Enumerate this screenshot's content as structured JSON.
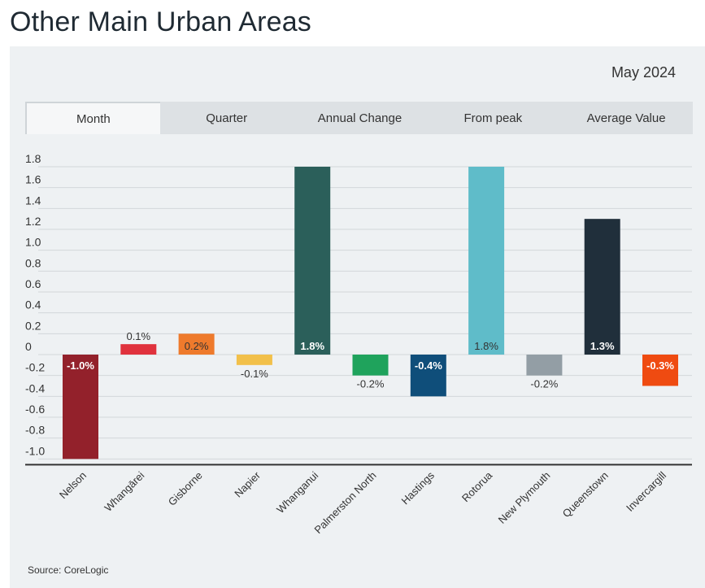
{
  "header": {
    "title": "Other Main Urban Areas"
  },
  "panel": {
    "date": "May 2024",
    "source": "Source: CoreLogic"
  },
  "tabs": [
    {
      "label": "Month",
      "active": true
    },
    {
      "label": "Quarter",
      "active": false
    },
    {
      "label": "Annual Change",
      "active": false
    },
    {
      "label": "From peak",
      "active": false
    },
    {
      "label": "Average Value",
      "active": false
    }
  ],
  "chart_data": {
    "type": "bar",
    "title": "",
    "xlabel": "",
    "ylabel": "",
    "ylim": [
      -1.0,
      1.8
    ],
    "yticks": [
      1.8,
      1.6,
      1.4,
      1.2,
      1.0,
      0.8,
      0.6,
      0.4,
      0.2,
      0,
      -0.2,
      -0.4,
      -0.6,
      -0.8,
      -1.0
    ],
    "ytick_labels": [
      "1.8",
      "1.6",
      "1.4",
      "1.2",
      "1.0",
      "0.8",
      "0.6",
      "0.4",
      "0.2",
      "0",
      "-0.2",
      "-0.4",
      "-0.6",
      "-0.8",
      "-1.0"
    ],
    "grid": true,
    "categories": [
      "Nelson",
      "Whangārei",
      "Gisborne",
      "Napier",
      "Whanganui",
      "Palmerston North",
      "Hastings",
      "Rotorua",
      "New Plymouth",
      "Queenstown",
      "Invercargill"
    ],
    "values": [
      -1.0,
      0.1,
      0.2,
      -0.1,
      1.8,
      -0.2,
      -0.4,
      1.8,
      -0.2,
      1.3,
      -0.3
    ],
    "data_labels": [
      "-1.0%",
      "0.1%",
      "0.2%",
      "-0.1%",
      "1.8%",
      "-0.2%",
      "-0.4%",
      "1.8%",
      "-0.2%",
      "1.3%",
      "-0.3%"
    ],
    "colors": [
      "#93212b",
      "#e0323d",
      "#ee7a2c",
      "#f2c04a",
      "#2b5f5a",
      "#1fa35c",
      "#0f4e7a",
      "#5fbcc9",
      "#939ea5",
      "#202f3b",
      "#ef4b11"
    ],
    "label_positions": [
      "inside",
      "outside",
      "inside",
      "outside",
      "inside",
      "outside",
      "inside",
      "inside",
      "outside",
      "inside",
      "inside"
    ],
    "label_colors": [
      "#ffffff",
      "#333333",
      "#333333",
      "#333333",
      "#ffffff",
      "#333333",
      "#ffffff",
      "#333333",
      "#333333",
      "#ffffff",
      "#ffffff"
    ]
  }
}
